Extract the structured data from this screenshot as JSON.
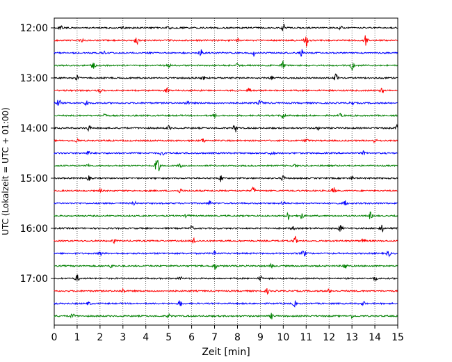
{
  "chart_data": {
    "type": "line",
    "title": "",
    "xlabel": "Zeit  [min]",
    "ylabel": "UTC (Lokalzeit = UTC + 01:00)",
    "xlim": [
      0,
      15
    ],
    "x_ticks": [
      0,
      1,
      2,
      3,
      4,
      5,
      6,
      7,
      8,
      9,
      10,
      11,
      12,
      13,
      14,
      15
    ],
    "x_tick_labels": [
      "0",
      "1",
      "2",
      "3",
      "4",
      "5",
      "6",
      "7",
      "8",
      "9",
      "10",
      "11",
      "12",
      "13",
      "14",
      "15"
    ],
    "y_tick_labels": [
      "12:00",
      "13:00",
      "14:00",
      "15:00",
      "16:00",
      "17:00"
    ],
    "grid": {
      "vertical": true,
      "style": "dotted"
    },
    "line_colors": [
      "#000000",
      "#ff0000",
      "#0000ff",
      "#008000"
    ],
    "series": [
      {
        "start": "12:00",
        "color": "#000000",
        "events": [
          [
            10.0,
            1.0
          ],
          [
            0.3,
            0.4
          ],
          [
            5.0,
            0.5
          ],
          [
            3.0,
            0.4
          ],
          [
            12.5,
            0.4
          ]
        ]
      },
      {
        "start": "12:15",
        "color": "#ff0000",
        "events": [
          [
            3.6,
            1.4
          ],
          [
            11.0,
            1.6
          ],
          [
            13.6,
            1.4
          ],
          [
            1.2,
            0.4
          ],
          [
            8.0,
            0.4
          ]
        ]
      },
      {
        "start": "12:30",
        "color": "#0000ff",
        "events": [
          [
            6.4,
            1.2
          ],
          [
            8.7,
            0.9
          ],
          [
            10.8,
            0.9
          ],
          [
            2.2,
            0.4
          ]
        ]
      },
      {
        "start": "12:45",
        "color": "#008000",
        "events": [
          [
            1.7,
            0.8
          ],
          [
            10.0,
            1.1
          ],
          [
            13.0,
            1.1
          ],
          [
            5.0,
            0.4
          ],
          [
            8.0,
            0.4
          ]
        ]
      },
      {
        "start": "13:00",
        "color": "#000000",
        "events": [
          [
            1.0,
            0.6
          ],
          [
            12.3,
            1.0
          ],
          [
            6.5,
            0.5
          ],
          [
            9.5,
            0.4
          ]
        ]
      },
      {
        "start": "13:15",
        "color": "#ff0000",
        "events": [
          [
            4.9,
            0.8
          ],
          [
            8.5,
            0.6
          ],
          [
            14.3,
            0.6
          ],
          [
            2.0,
            0.4
          ]
        ]
      },
      {
        "start": "13:30",
        "color": "#0000ff",
        "events": [
          [
            0.2,
            1.0
          ],
          [
            1.4,
            0.8
          ],
          [
            9.0,
            0.8
          ],
          [
            13.0,
            0.6
          ],
          [
            5.8,
            0.5
          ]
        ]
      },
      {
        "start": "13:45",
        "color": "#008000",
        "events": [
          [
            2.2,
            0.6
          ],
          [
            10.0,
            0.9
          ],
          [
            7.0,
            0.5
          ],
          [
            12.5,
            0.4
          ]
        ]
      },
      {
        "start": "14:00",
        "color": "#000000",
        "events": [
          [
            1.5,
            0.8
          ],
          [
            7.9,
            1.1
          ],
          [
            15.0,
            0.9
          ],
          [
            5.0,
            0.5
          ],
          [
            11.5,
            0.4
          ]
        ]
      },
      {
        "start": "14:15",
        "color": "#ff0000",
        "events": [
          [
            1.0,
            0.5
          ],
          [
            6.5,
            0.5
          ],
          [
            11.0,
            0.5
          ],
          [
            14.0,
            0.5
          ]
        ]
      },
      {
        "start": "14:30",
        "color": "#0000ff",
        "events": [
          [
            1.5,
            0.6
          ],
          [
            4.7,
            0.6
          ],
          [
            9.5,
            0.6
          ],
          [
            13.5,
            0.5
          ]
        ]
      },
      {
        "start": "14:45",
        "color": "#008000",
        "events": [
          [
            4.5,
            3.0
          ],
          [
            5.5,
            0.5
          ],
          [
            1.5,
            0.4
          ],
          [
            10.5,
            0.4
          ]
        ]
      },
      {
        "start": "15:00",
        "color": "#000000",
        "events": [
          [
            7.3,
            1.0
          ],
          [
            1.5,
            0.6
          ],
          [
            10.0,
            0.6
          ],
          [
            13.0,
            0.5
          ]
        ]
      },
      {
        "start": "15:15",
        "color": "#ff0000",
        "events": [
          [
            8.7,
            0.9
          ],
          [
            12.2,
            0.8
          ],
          [
            5.5,
            0.5
          ],
          [
            2.0,
            0.4
          ]
        ]
      },
      {
        "start": "15:30",
        "color": "#0000ff",
        "events": [
          [
            6.8,
            0.7
          ],
          [
            12.7,
            0.8
          ],
          [
            3.5,
            0.4
          ],
          [
            10.0,
            0.5
          ]
        ]
      },
      {
        "start": "15:45",
        "color": "#008000",
        "events": [
          [
            10.2,
            1.0
          ],
          [
            10.8,
            0.8
          ],
          [
            13.8,
            0.9
          ],
          [
            5.8,
            0.5
          ]
        ]
      },
      {
        "start": "16:00",
        "color": "#000000",
        "events": [
          [
            12.5,
            1.0
          ],
          [
            14.3,
            1.0
          ],
          [
            6.0,
            0.6
          ],
          [
            10.4,
            0.5
          ]
        ]
      },
      {
        "start": "16:15",
        "color": "#ff0000",
        "events": [
          [
            10.5,
            1.2
          ],
          [
            6.1,
            0.8
          ],
          [
            2.6,
            0.5
          ],
          [
            13.5,
            0.5
          ]
        ]
      },
      {
        "start": "16:30",
        "color": "#0000ff",
        "events": [
          [
            10.9,
            0.9
          ],
          [
            14.6,
            0.7
          ],
          [
            2.0,
            0.5
          ],
          [
            7.0,
            0.5
          ]
        ]
      },
      {
        "start": "16:45",
        "color": "#008000",
        "events": [
          [
            7.0,
            1.0
          ],
          [
            12.7,
            0.9
          ],
          [
            2.5,
            0.5
          ],
          [
            9.5,
            0.5
          ]
        ]
      },
      {
        "start": "17:00",
        "color": "#000000",
        "events": [
          [
            1.0,
            0.9
          ],
          [
            9.0,
            0.6
          ],
          [
            14.0,
            0.6
          ],
          [
            5.5,
            0.4
          ]
        ]
      },
      {
        "start": "17:15",
        "color": "#ff0000",
        "events": [
          [
            9.3,
            0.6
          ],
          [
            3.0,
            0.5
          ],
          [
            12.0,
            0.5
          ]
        ]
      },
      {
        "start": "17:30",
        "color": "#0000ff",
        "events": [
          [
            5.5,
            0.8
          ],
          [
            10.5,
            0.7
          ],
          [
            1.5,
            0.4
          ],
          [
            13.5,
            0.5
          ]
        ]
      },
      {
        "start": "17:45",
        "color": "#008000",
        "events": [
          [
            0.8,
            0.6
          ],
          [
            9.5,
            0.7
          ],
          [
            5.0,
            0.4
          ],
          [
            13.0,
            0.4
          ]
        ]
      }
    ]
  }
}
